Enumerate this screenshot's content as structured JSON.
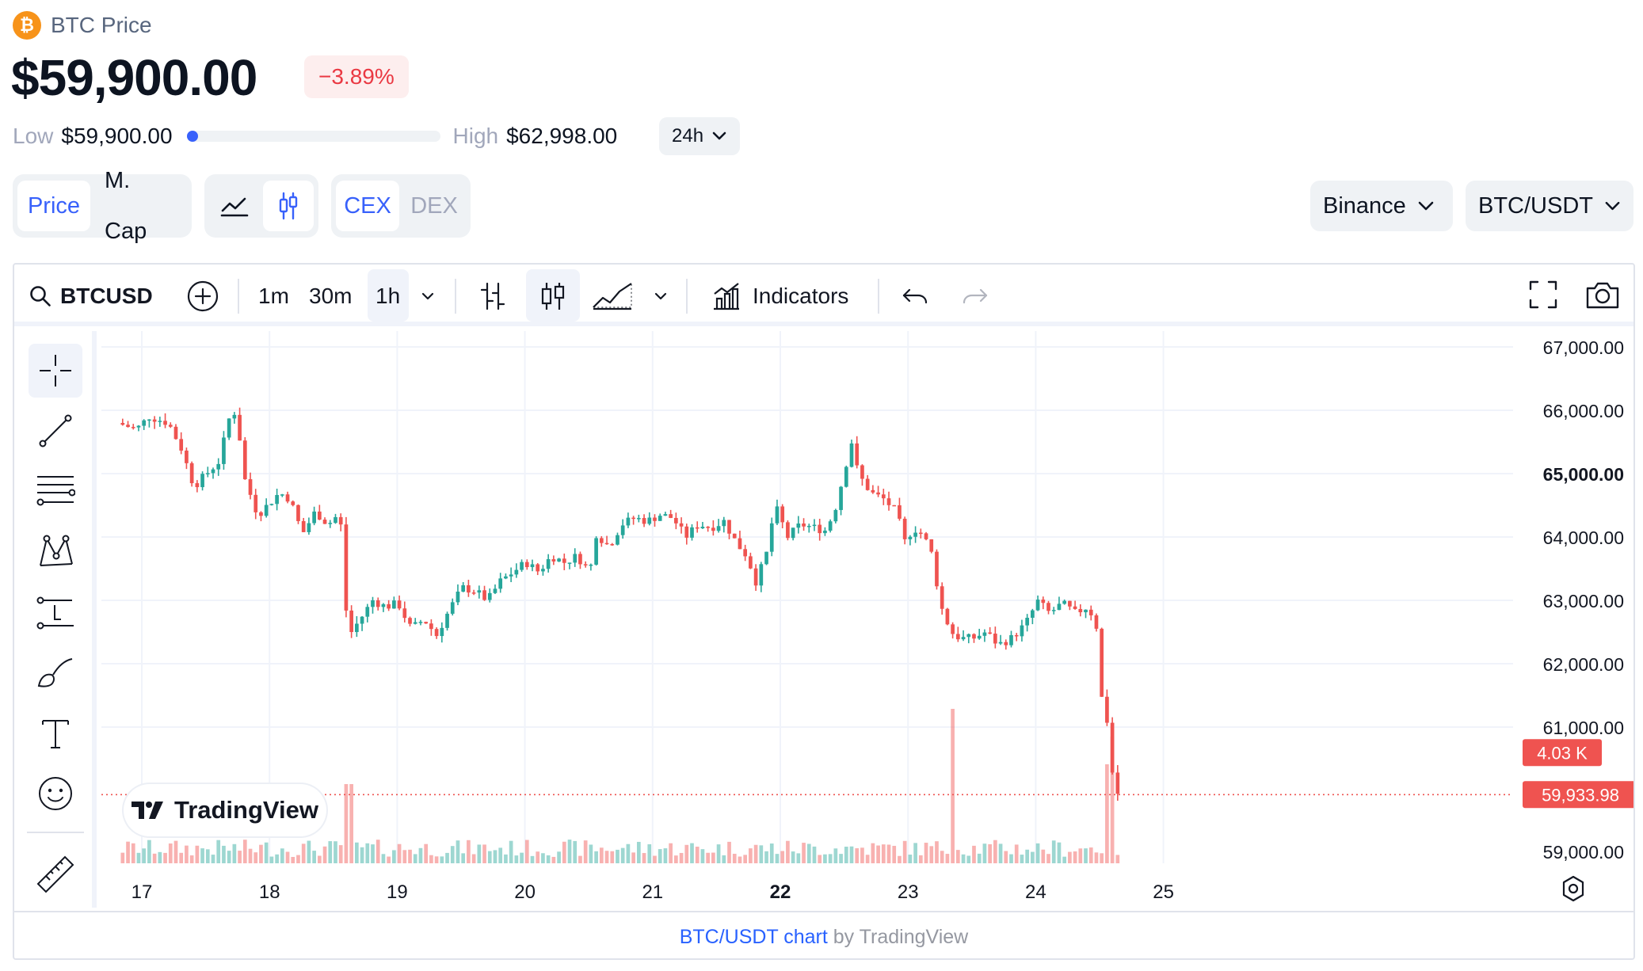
{
  "header": {
    "coin_symbol_glyph": "₿",
    "title": "BTC Price",
    "price": "$59,900.00",
    "change": "−3.89%",
    "low_label": "Low",
    "low_value": "$59,900.00",
    "high_label": "High",
    "high_value": "$62,998.00",
    "range_position": 0.0,
    "timeframe": "24h"
  },
  "toggles": {
    "metric": [
      "Price",
      "M. Cap"
    ],
    "metric_selected": "Price",
    "chart_style_selected": "candles",
    "source": [
      "CEX",
      "DEX"
    ],
    "source_selected": "CEX"
  },
  "selectors": {
    "exchange": "Binance",
    "pair": "BTC/USDT"
  },
  "toolbar": {
    "symbol": "BTCUSD",
    "intervals": [
      "1m",
      "30m",
      "1h"
    ],
    "interval_selected": "1h",
    "indicators_label": "Indicators"
  },
  "footer": {
    "link_text": "BTC/USDT chart",
    "by_text": "by TradingView"
  },
  "brand": {
    "watermark": "TradingView"
  },
  "colors": {
    "up": "#26a69a",
    "down": "#ef5350",
    "accent": "#3861fb",
    "negative": "#ea3943"
  },
  "chart_data": {
    "type": "candlestick",
    "interval": "1h",
    "x_tick_labels": [
      "17",
      "18",
      "19",
      "20",
      "21",
      "22",
      "23",
      "24",
      "25"
    ],
    "y_tick_labels": [
      "67,000.00",
      "66,000.00",
      "65,000.00",
      "64,000.00",
      "63,000.00",
      "62,000.00",
      "61,000.00",
      "59,000.00"
    ],
    "ylim": [
      58850,
      67250
    ],
    "price_path": [
      [
        "16.85",
        65800
      ],
      [
        "17.0",
        65700
      ],
      [
        "17.1",
        65900
      ],
      [
        "17.25",
        65800
      ],
      [
        "17.35",
        65400
      ],
      [
        "17.45",
        64800
      ],
      [
        "17.55",
        65000
      ],
      [
        "17.65",
        65200
      ],
      [
        "17.72",
        65850
      ],
      [
        "17.78",
        66000
      ],
      [
        "17.85",
        64900
      ],
      [
        "17.95",
        64350
      ],
      [
        "18.05",
        64550
      ],
      [
        "18.12",
        64700
      ],
      [
        "18.2",
        64600
      ],
      [
        "18.3",
        64050
      ],
      [
        "18.4",
        64400
      ],
      [
        "18.5",
        64200
      ],
      [
        "18.58",
        64350
      ],
      [
        "18.62",
        64000
      ],
      [
        "18.65",
        62400
      ],
      [
        "18.75",
        62700
      ],
      [
        "18.85",
        63000
      ],
      [
        "18.95",
        62900
      ],
      [
        "19.05",
        62950
      ],
      [
        "19.15",
        62550
      ],
      [
        "19.25",
        62700
      ],
      [
        "19.35",
        62450
      ],
      [
        "19.45",
        62850
      ],
      [
        "19.55",
        63200
      ],
      [
        "19.65",
        63150
      ],
      [
        "19.75",
        63000
      ],
      [
        "19.85",
        63300
      ],
      [
        "19.95",
        63450
      ],
      [
        "20.05",
        63600
      ],
      [
        "20.15",
        63450
      ],
      [
        "20.25",
        63700
      ],
      [
        "20.35",
        63600
      ],
      [
        "20.45",
        63700
      ],
      [
        "20.55",
        63450
      ],
      [
        "20.6",
        64050
      ],
      [
        "20.7",
        63850
      ],
      [
        "20.8",
        64200
      ],
      [
        "20.9",
        64300
      ],
      [
        "21.0",
        64250
      ],
      [
        "21.1",
        64350
      ],
      [
        "21.2",
        64300
      ],
      [
        "21.3",
        64000
      ],
      [
        "21.4",
        64200
      ],
      [
        "21.5",
        64150
      ],
      [
        "21.6",
        64250
      ],
      [
        "21.7",
        63900
      ],
      [
        "21.78",
        63700
      ],
      [
        "21.85",
        63300
      ],
      [
        "21.93",
        63700
      ],
      [
        "22.0",
        64500
      ],
      [
        "22.1",
        64000
      ],
      [
        "22.2",
        64200
      ],
      [
        "22.3",
        64150
      ],
      [
        "22.4",
        64100
      ],
      [
        "22.48",
        64500
      ],
      [
        "22.55",
        65100
      ],
      [
        "22.6",
        65500
      ],
      [
        "22.65",
        65000
      ],
      [
        "22.75",
        64700
      ],
      [
        "22.85",
        64600
      ],
      [
        "22.95",
        64400
      ],
      [
        "23.02",
        63900
      ],
      [
        "23.08",
        64150
      ],
      [
        "23.15",
        64050
      ],
      [
        "23.22",
        63800
      ],
      [
        "23.3",
        62900
      ],
      [
        "23.38",
        62500
      ],
      [
        "23.45",
        62400
      ],
      [
        "23.55",
        62400
      ],
      [
        "23.65",
        62500
      ],
      [
        "23.75",
        62300
      ],
      [
        "23.85",
        62400
      ],
      [
        "23.95",
        62600
      ],
      [
        "24.0",
        62750
      ],
      [
        "24.05",
        63000
      ],
      [
        "24.15",
        62800
      ],
      [
        "24.25",
        62950
      ],
      [
        "24.35",
        62800
      ],
      [
        "24.45",
        62900
      ],
      [
        "24.5",
        62700
      ],
      [
        "24.53",
        62500
      ],
      [
        "24.56",
        61400
      ],
      [
        "24.6",
        61100
      ],
      [
        "24.64",
        60300
      ],
      [
        "24.68",
        59950
      ]
    ],
    "last_price_label": "59,933.98",
    "last_price": 59933.98,
    "volume_label": "4.03 K",
    "volume_spikes": [
      [
        "18.62",
        1.0
      ],
      [
        "23.34",
        1.95
      ],
      [
        "24.55",
        1.25
      ],
      [
        "24.6",
        1.6
      ]
    ]
  }
}
